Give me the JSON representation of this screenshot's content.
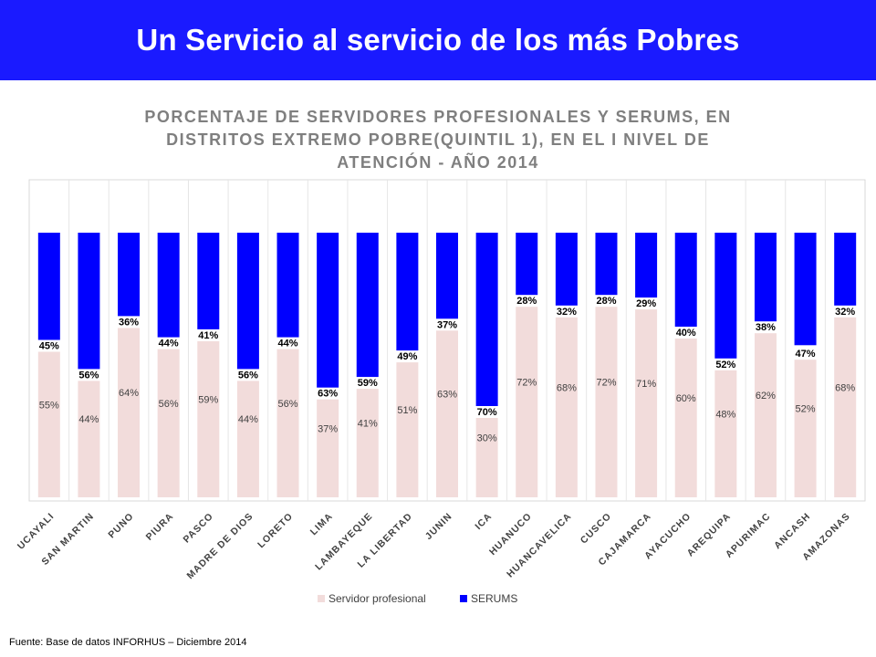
{
  "header": {
    "title": "Un Servicio al servicio de los más Pobres"
  },
  "chart_data": {
    "type": "bar",
    "stacked": true,
    "title": "PORCENTAJE DE SERVIDORES PROFESIONALES Y SERUMS, EN DISTRITOS EXTREMO POBRE(QUINTIL 1), EN EL I NIVEL DE ATENCIÓN - AÑO 2014",
    "title_lines": [
      "PORCENTAJE DE SERVIDORES PROFESIONALES Y SERUMS, EN",
      "DISTRITOS EXTREMO POBRE(QUINTIL 1), EN EL I NIVEL DE",
      "ATENCIÓN - AÑO 2014"
    ],
    "categories": [
      "UCAYALI",
      "SAN MARTIN",
      "PUNO",
      "PIURA",
      "PASCO",
      "MADRE DE DIOS",
      "LORETO",
      "LIMA",
      "LAMBAYEQUE",
      "LA LIBERTAD",
      "JUNIN",
      "ICA",
      "HUANUCO",
      "HUANCAVELICA",
      "CUSCO",
      "CAJAMARCA",
      "AYACUCHO",
      "AREQUIPA",
      "APURIMAC",
      "ANCASH",
      "AMAZONAS"
    ],
    "series": [
      {
        "name": "Servidor profesional",
        "color": "#f2dcdb",
        "values": [
          55,
          44,
          64,
          56,
          59,
          44,
          56,
          37,
          41,
          51,
          63,
          30,
          72,
          68,
          72,
          71,
          60,
          48,
          62,
          52,
          68
        ],
        "labels": [
          "55%",
          "44%",
          "64%",
          "56%",
          "59%",
          "44%",
          "56%",
          "37%",
          "41%",
          "51%",
          "63%",
          "30%",
          "72%",
          "68%",
          "72%",
          "71%",
          "60%",
          "48%",
          "62%",
          "52%",
          "68%"
        ]
      },
      {
        "name": "SERUMS",
        "color": "#0000ff",
        "values": [
          45,
          56,
          36,
          44,
          41,
          56,
          44,
          63,
          59,
          49,
          37,
          70,
          28,
          32,
          28,
          29,
          40,
          52,
          38,
          47,
          32
        ],
        "labels": [
          "45%",
          "56%",
          "36%",
          "44%",
          "41%",
          "56%",
          "44%",
          "63%",
          "59%",
          "49%",
          "37%",
          "70%",
          "28%",
          "32%",
          "28%",
          "29%",
          "40%",
          "52%",
          "38%",
          "47%",
          "32%"
        ]
      }
    ],
    "ylim": [
      0,
      100
    ],
    "grid": false,
    "legend_position": "bottom"
  },
  "source": "Fuente: Base de datos INFORHUS – Diciembre 2014"
}
